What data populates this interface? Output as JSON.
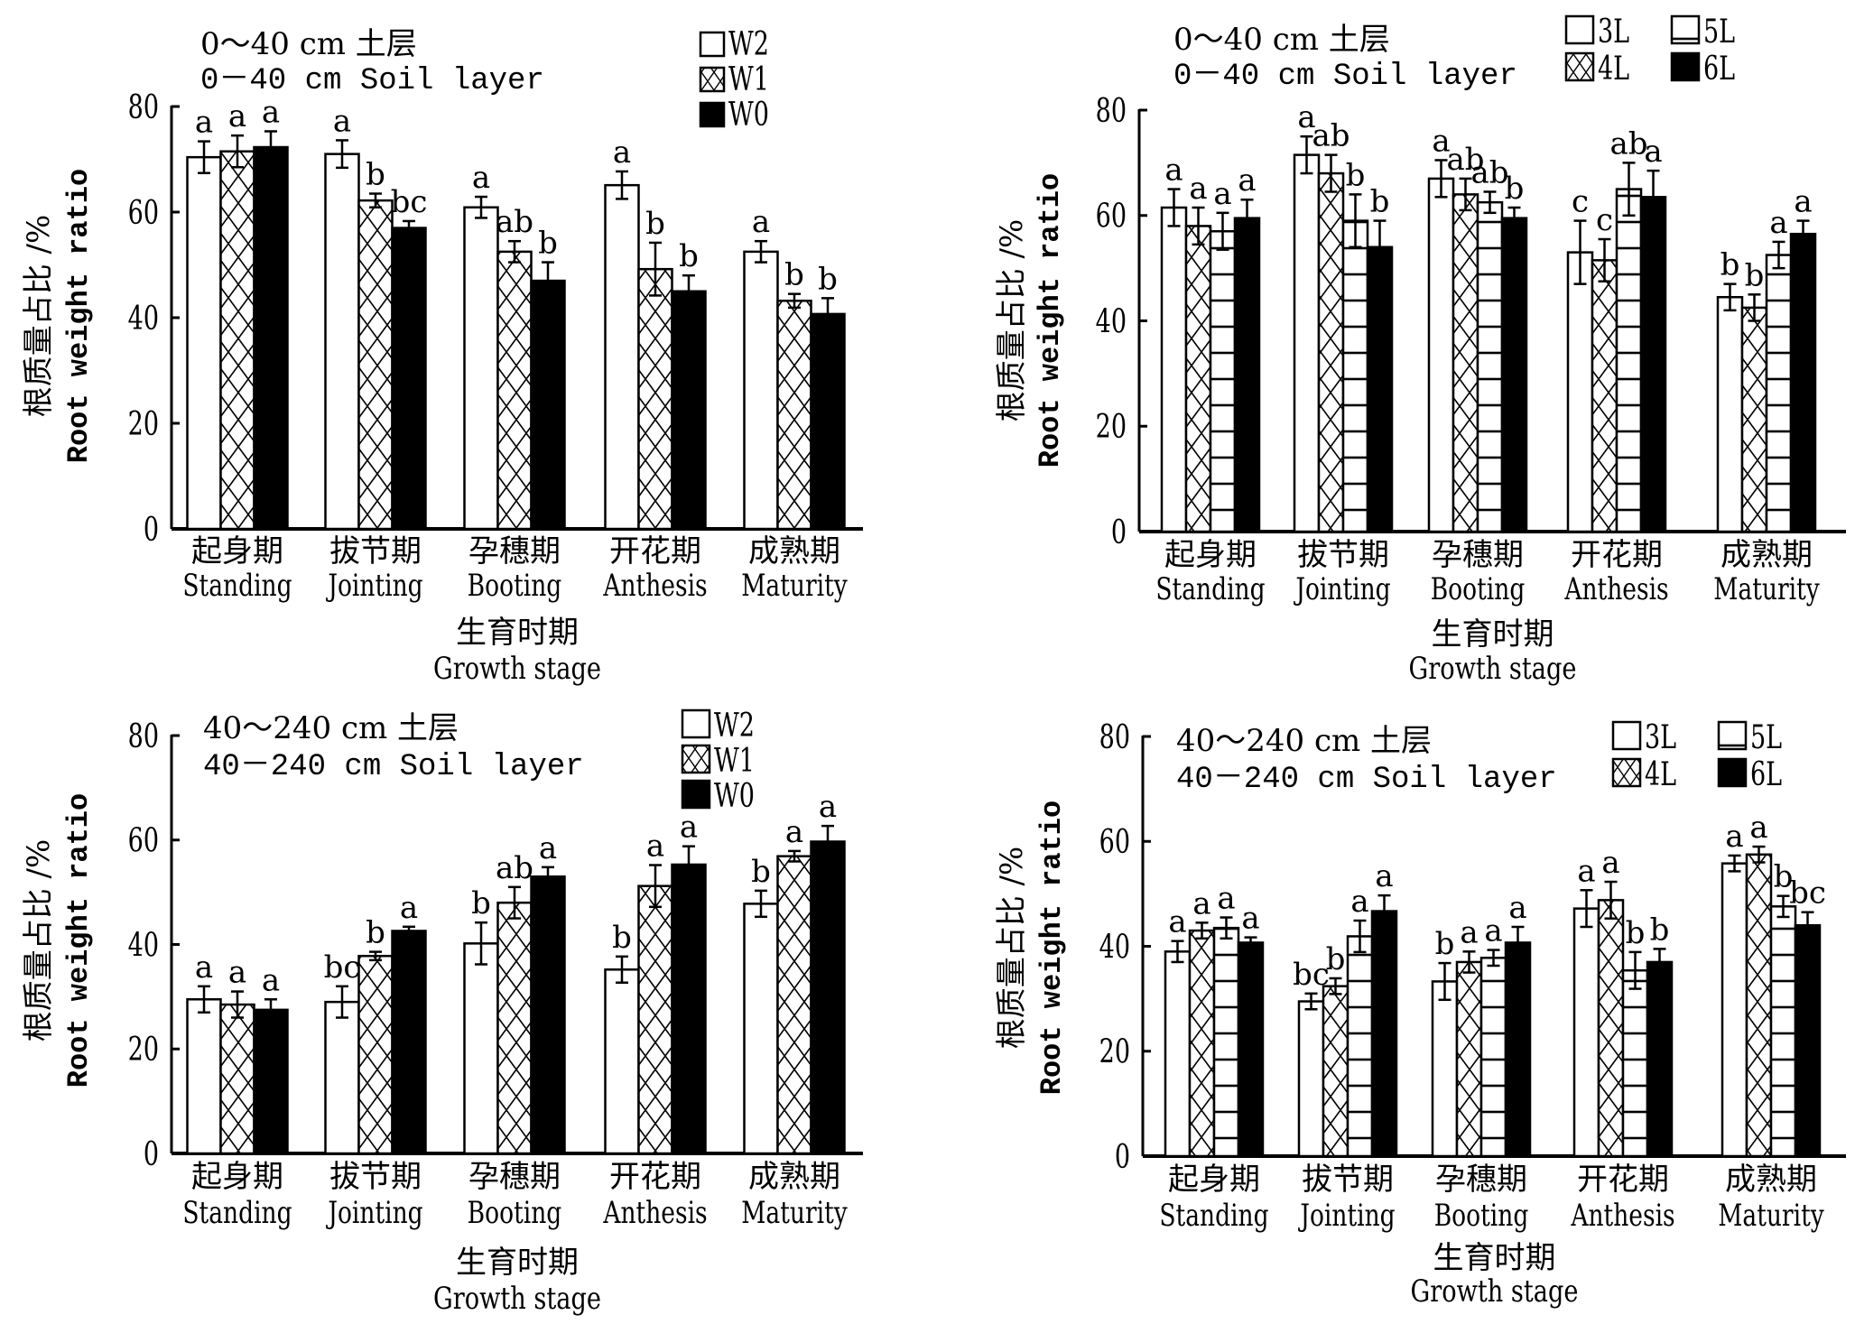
{
  "colors": {
    "ink": "#000000",
    "paper": "#ffffff"
  },
  "chart_data": [
    {
      "type": "bar",
      "panel": "top-left",
      "title_cn": "0～40 cm 土层",
      "title_en": "0－40 cm Soil layer",
      "ylabel_cn": "根质量占比 /%",
      "ylabel_en": "Root weight ratio",
      "xlabel_cn": "生育时期",
      "xlabel_en": "Growth stage",
      "ylim": [
        0,
        80
      ],
      "yticks": [
        0,
        20,
        40,
        60,
        80
      ],
      "legend_placement": "top-right",
      "categories_cn": [
        "起身期",
        "拔节期",
        "孕穗期",
        "开花期",
        "成熟期"
      ],
      "categories": [
        "Standing",
        "Jointing",
        "Booting",
        "Anthesis",
        "Maturity"
      ],
      "series": [
        {
          "name": "W2",
          "pattern": "open",
          "values": [
            70.4,
            71.0,
            60.9,
            65.1,
            52.5
          ],
          "errors": [
            3.0,
            2.6,
            2.0,
            2.6,
            2.0
          ],
          "letters": [
            "a",
            "a",
            "a",
            "a",
            "a"
          ]
        },
        {
          "name": "W1",
          "pattern": "diamond-hatch",
          "values": [
            71.5,
            62.2,
            52.5,
            49.2,
            43.2
          ],
          "errors": [
            3.0,
            1.3,
            2.0,
            5.0,
            1.3
          ],
          "letters": [
            "a",
            "b",
            "ab",
            "b",
            "b"
          ]
        },
        {
          "name": "W0",
          "pattern": "solid",
          "values": [
            72.3,
            57.0,
            47.0,
            45.0,
            40.7
          ],
          "errors": [
            3.0,
            1.3,
            3.5,
            3.0,
            3.0
          ],
          "letters": [
            "a",
            "bc",
            "b",
            "b",
            "b"
          ]
        }
      ]
    },
    {
      "type": "bar",
      "panel": "top-right",
      "title_cn": "0～40 cm 土层",
      "title_en": "0－40 cm Soil layer",
      "ylabel_cn": "根质量占比 /%",
      "ylabel_en": "Root weight ratio",
      "xlabel_cn": "生育时期",
      "xlabel_en": "Growth stage",
      "ylim": [
        0,
        80
      ],
      "yticks": [
        0,
        20,
        40,
        60,
        80
      ],
      "legend_placement": "top-right",
      "categories_cn": [
        "起身期",
        "拔节期",
        "孕穗期",
        "开花期",
        "成熟期"
      ],
      "categories": [
        "Standing",
        "Jointing",
        "Booting",
        "Anthesis",
        "Maturity"
      ],
      "series": [
        {
          "name": "3L",
          "pattern": "open",
          "values": [
            61.5,
            71.5,
            67.0,
            53.0,
            44.5
          ],
          "errors": [
            3.5,
            3.5,
            3.5,
            6.0,
            2.5
          ],
          "letters": [
            "a",
            "a",
            "a",
            "c",
            "b"
          ]
        },
        {
          "name": "4L",
          "pattern": "diamond-hatch",
          "values": [
            58.0,
            68.0,
            64.0,
            51.5,
            42.5
          ],
          "errors": [
            3.5,
            3.5,
            3.0,
            4.0,
            2.5
          ],
          "letters": [
            "a",
            "ab",
            "ab",
            "c",
            "b"
          ]
        },
        {
          "name": "5L",
          "pattern": "horizontal-lines",
          "values": [
            57.0,
            59.0,
            62.5,
            65.0,
            52.5
          ],
          "errors": [
            3.5,
            5.0,
            2.0,
            5.0,
            2.5
          ],
          "letters": [
            "a",
            "b",
            "ab",
            "ab",
            "a"
          ]
        },
        {
          "name": "6L",
          "pattern": "solid",
          "values": [
            59.5,
            54.0,
            59.5,
            63.5,
            56.5
          ],
          "errors": [
            3.5,
            5.0,
            2.0,
            5.0,
            2.5
          ],
          "letters": [
            "a",
            "b",
            "b",
            "a",
            "a"
          ]
        }
      ]
    },
    {
      "type": "bar",
      "panel": "bottom-left",
      "title_cn": "40～240 cm 土层",
      "title_en": "40－240 cm Soil layer",
      "ylabel_cn": "根质量占比 /%",
      "ylabel_en": "Root weight ratio",
      "xlabel_cn": "生育时期",
      "xlabel_en": "Growth stage",
      "ylim": [
        0,
        80
      ],
      "yticks": [
        0,
        20,
        40,
        60,
        80
      ],
      "legend_placement": "top-right",
      "categories_cn": [
        "起身期",
        "拔节期",
        "孕穗期",
        "开花期",
        "成熟期"
      ],
      "categories": [
        "Standing",
        "Jointing",
        "Booting",
        "Anthesis",
        "Maturity"
      ],
      "series": [
        {
          "name": "W2",
          "pattern": "open",
          "values": [
            29.5,
            29.0,
            40.2,
            35.2,
            47.8
          ],
          "errors": [
            2.5,
            3.0,
            4.0,
            2.5,
            2.5
          ],
          "letters": [
            "a",
            "bc",
            "b",
            "b",
            "b"
          ]
        },
        {
          "name": "W1",
          "pattern": "diamond-hatch",
          "values": [
            28.5,
            37.8,
            48.0,
            51.2,
            56.9
          ],
          "errors": [
            2.5,
            0.8,
            3.0,
            4.0,
            1.0
          ],
          "letters": [
            "a",
            "b",
            "ab",
            "a",
            "a"
          ]
        },
        {
          "name": "W0",
          "pattern": "solid",
          "values": [
            27.5,
            42.6,
            53.0,
            55.3,
            59.7
          ],
          "errors": [
            2.0,
            0.8,
            1.8,
            3.5,
            3.0
          ],
          "letters": [
            "a",
            "a",
            "a",
            "a",
            "a"
          ]
        }
      ]
    },
    {
      "type": "bar",
      "panel": "bottom-right",
      "title_cn": "40～240 cm 土层",
      "title_en": "40－240 cm Soil layer",
      "ylabel_cn": "根质量占比 /%",
      "ylabel_en": "Root weight ratio",
      "xlabel_cn": "生育时期",
      "xlabel_en": "Growth stage",
      "ylim": [
        0,
        80
      ],
      "yticks": [
        0,
        20,
        40,
        60,
        80
      ],
      "legend_placement": "top-right",
      "categories_cn": [
        "起身期",
        "拔节期",
        "孕穗期",
        "开花期",
        "成熟期"
      ],
      "categories": [
        "Standing",
        "Jointing",
        "Booting",
        "Anthesis",
        "Maturity"
      ],
      "series": [
        {
          "name": "3L",
          "pattern": "open",
          "values": [
            39.0,
            29.5,
            33.3,
            47.2,
            55.8
          ],
          "errors": [
            2.0,
            1.5,
            3.5,
            3.5,
            1.5
          ],
          "letters": [
            "a",
            "bc",
            "b",
            "a",
            "a"
          ]
        },
        {
          "name": "4L",
          "pattern": "diamond-hatch",
          "values": [
            43.0,
            32.4,
            37.0,
            48.8,
            57.5
          ],
          "errors": [
            1.5,
            1.5,
            2.0,
            3.5,
            1.5
          ],
          "letters": [
            "a",
            "b",
            "a",
            "a",
            "a"
          ]
        },
        {
          "name": "5L",
          "pattern": "horizontal-lines",
          "values": [
            43.5,
            41.9,
            37.8,
            35.4,
            47.6
          ],
          "errors": [
            2.0,
            3.0,
            1.5,
            3.5,
            2.0
          ],
          "letters": [
            "a",
            "a",
            "a",
            "b",
            "b"
          ]
        },
        {
          "name": "6L",
          "pattern": "solid",
          "values": [
            40.7,
            46.7,
            40.7,
            37.0,
            44.0
          ],
          "errors": [
            1.0,
            3.0,
            3.0,
            2.5,
            2.5
          ],
          "letters": [
            "a",
            "a",
            "a",
            "b",
            "bc"
          ]
        }
      ]
    }
  ]
}
